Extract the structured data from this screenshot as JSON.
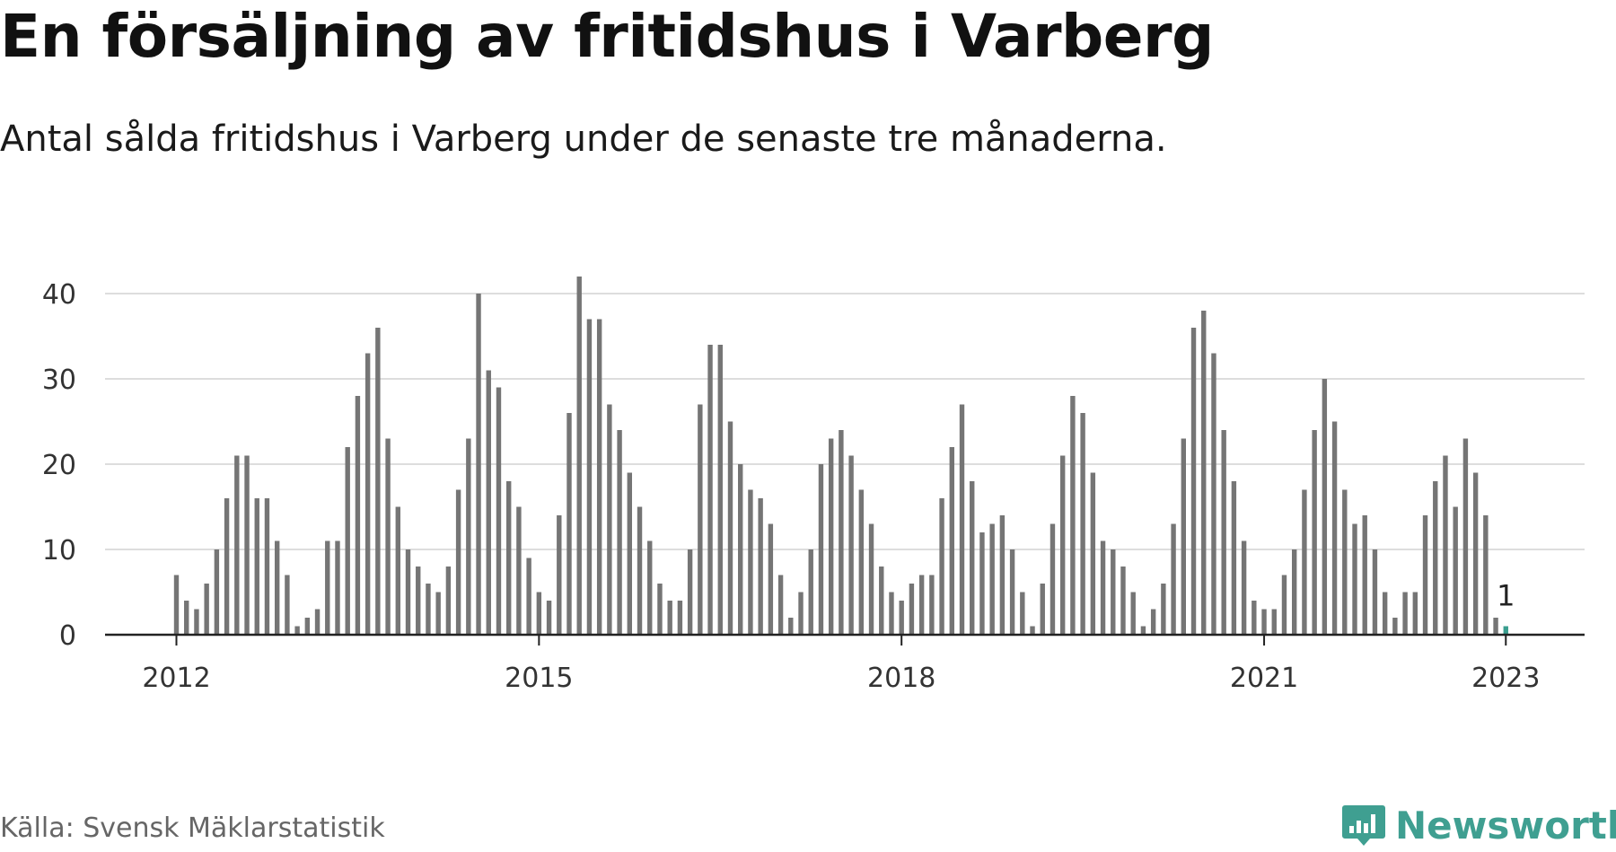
{
  "header": {
    "title": "En försäljning av fritidshus i Varberg",
    "subtitle": "Antal sålda fritidshus i Varberg under de senaste tre månaderna."
  },
  "footer": {
    "source": "Källa: Svensk Mäklarstatistik",
    "brand": "Newsworthy"
  },
  "colors": {
    "bar": "#757575",
    "highlight": "#3a9e8f",
    "grid": "#dddddd",
    "axis": "#222222",
    "brand": "#3f9f91"
  },
  "chart_data": {
    "type": "bar",
    "x_start": "2012-01",
    "x_interval": "month",
    "values": [
      7,
      4,
      3,
      6,
      10,
      16,
      21,
      21,
      16,
      16,
      11,
      7,
      1,
      2,
      3,
      11,
      11,
      22,
      28,
      33,
      36,
      23,
      15,
      10,
      8,
      6,
      5,
      8,
      17,
      23,
      40,
      31,
      29,
      18,
      15,
      9,
      5,
      4,
      14,
      26,
      42,
      37,
      37,
      27,
      24,
      19,
      15,
      11,
      6,
      4,
      4,
      10,
      27,
      34,
      34,
      25,
      20,
      17,
      16,
      13,
      7,
      2,
      5,
      10,
      20,
      23,
      24,
      21,
      17,
      13,
      8,
      5,
      4,
      6,
      7,
      7,
      16,
      22,
      27,
      18,
      12,
      13,
      14,
      10,
      5,
      1,
      6,
      13,
      21,
      28,
      26,
      19,
      11,
      10,
      8,
      5,
      1,
      3,
      6,
      13,
      23,
      36,
      38,
      33,
      24,
      18,
      11,
      4,
      3,
      3,
      7,
      10,
      17,
      24,
      30,
      25,
      17,
      13,
      14,
      10,
      5,
      2,
      5,
      5,
      14,
      18,
      21,
      15,
      23,
      19,
      14,
      2,
      1
    ],
    "highlight_last": true,
    "x_ticks": [
      {
        "value": "2012-01",
        "label": "2012"
      },
      {
        "value": "2015-01",
        "label": "2015"
      },
      {
        "value": "2018-01",
        "label": "2018"
      },
      {
        "value": "2021-01",
        "label": "2021"
      },
      {
        "value": "2023-01",
        "label": "2023"
      }
    ],
    "y_ticks": [
      0,
      10,
      20,
      30,
      40
    ],
    "ylim": [
      0,
      42
    ],
    "grid": true,
    "annotation": {
      "text": "1",
      "target": "last"
    }
  }
}
